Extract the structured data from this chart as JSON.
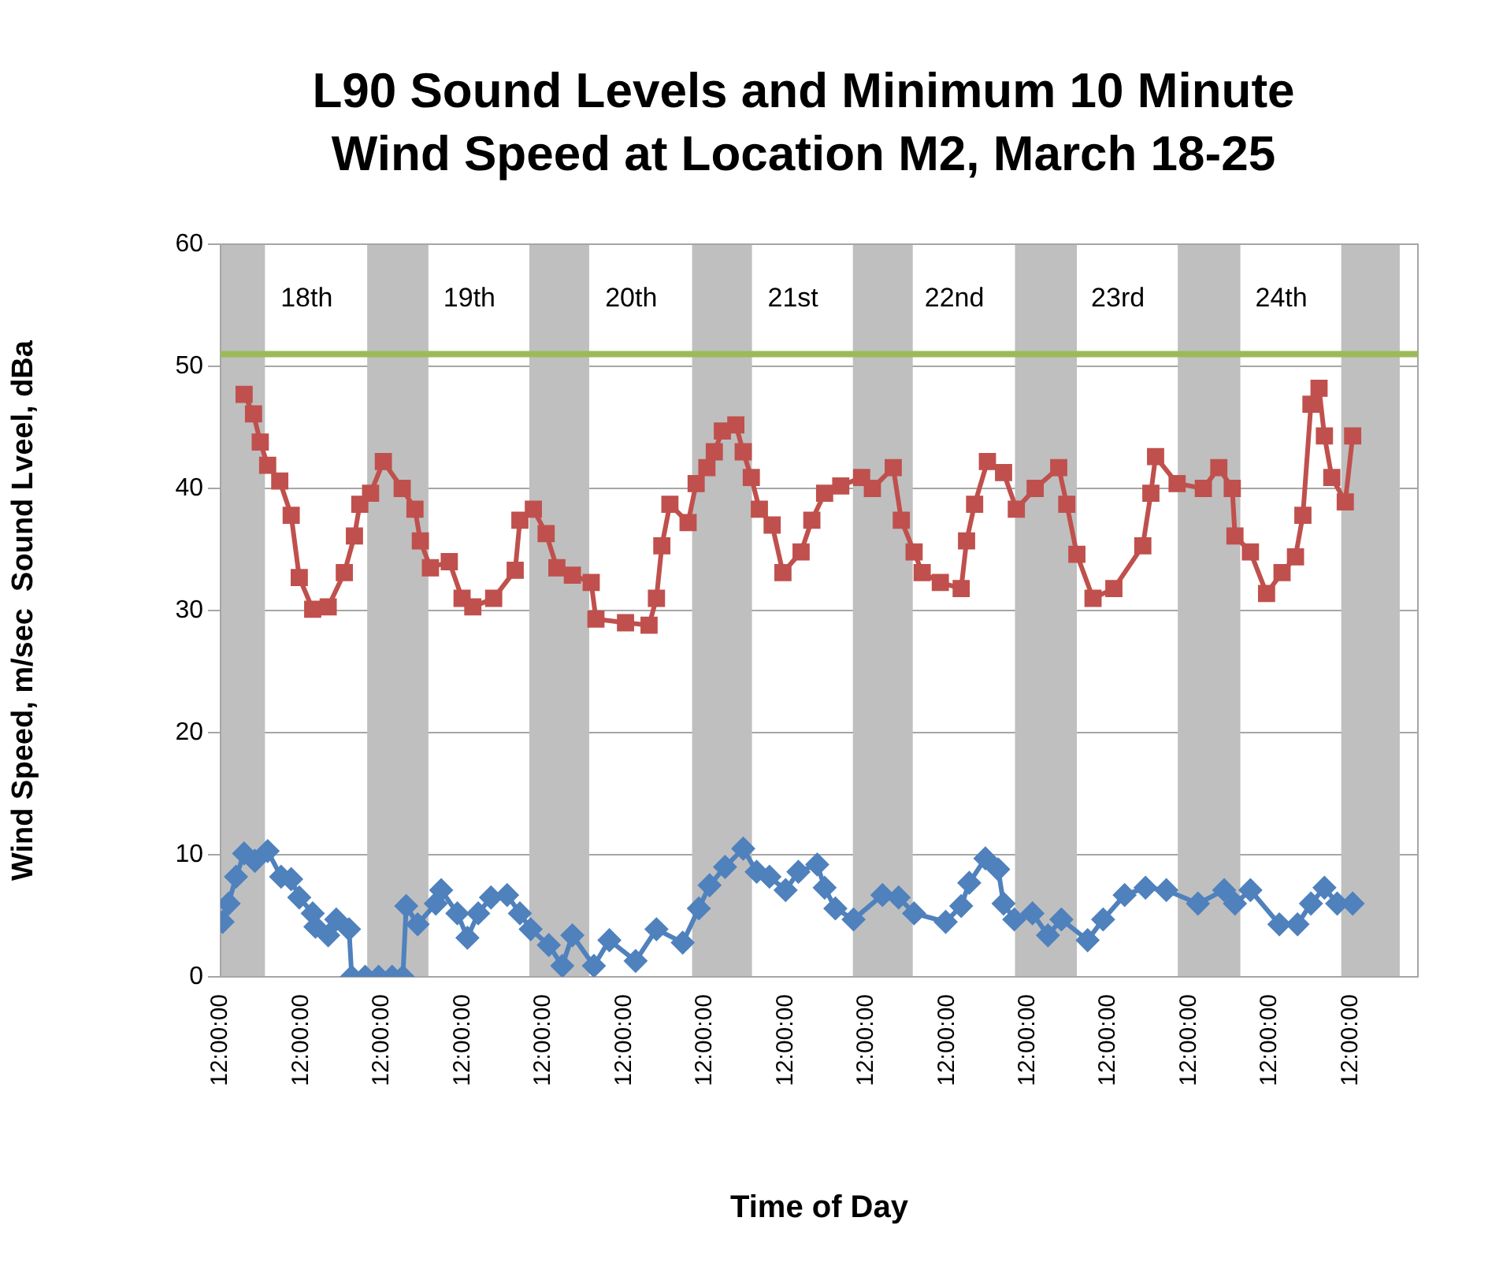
{
  "chart_data": {
    "type": "line",
    "title": "L90 Sound Levels and Minimum  10 Minute Wind Speed at Location M2, March 18-25",
    "xlabel": "Time of Day",
    "ylabel": "Wind Speed, m/sec  Sound Lveel, dBa",
    "xlim": [
      "--03-18T00:00",
      "--03-25T10:00"
    ],
    "xticks": [
      {
        "value": "--03-18T00:00",
        "label": "12:00:00"
      },
      {
        "value": "--03-18T12:00",
        "label": "12:00:00"
      },
      {
        "value": "--03-19T00:00",
        "label": "12:00:00"
      },
      {
        "value": "--03-19T12:00",
        "label": "12:00:00"
      },
      {
        "value": "--03-20T00:00",
        "label": "12:00:00"
      },
      {
        "value": "--03-20T12:00",
        "label": "12:00:00"
      },
      {
        "value": "--03-21T00:00",
        "label": "12:00:00"
      },
      {
        "value": "--03-21T12:00",
        "label": "12:00:00"
      },
      {
        "value": "--03-22T00:00",
        "label": "12:00:00"
      },
      {
        "value": "--03-22T12:00",
        "label": "12:00:00"
      },
      {
        "value": "--03-23T00:00",
        "label": "12:00:00"
      },
      {
        "value": "--03-23T12:00",
        "label": "12:00:00"
      },
      {
        "value": "--03-24T00:00",
        "label": "12:00:00"
      },
      {
        "value": "--03-24T12:00",
        "label": "12:00:00"
      },
      {
        "value": "--03-25T00:00",
        "label": "12:00:00"
      }
    ],
    "ylim": [
      0,
      60
    ],
    "yticks": [
      0,
      10,
      20,
      30,
      40,
      50,
      60
    ],
    "grid": "y",
    "series": [
      {
        "color": "#c0504d",
        "marker": "square",
        "x": [
          "--03-18T03:30",
          "--03-18T04:54",
          "--03-18T05:54",
          "--03-18T07:00",
          "--03-18T08:48",
          "--03-18T10:30",
          "--03-18T11:42",
          "--03-18T13:42",
          "--03-18T16:00",
          "--03-18T18:24",
          "--03-18T19:54",
          "--03-18T20:42",
          "--03-18T22:18",
          "--03-19T00:12",
          "--03-19T03:00",
          "--03-19T04:54",
          "--03-19T05:42",
          "--03-19T07:12",
          "--03-19T10:00",
          "--03-19T11:54",
          "--03-19T13:30",
          "--03-19T16:36",
          "--03-19T19:48",
          "--03-19T20:30",
          "--03-19T22:30",
          "--03-20T00:24",
          "--03-20T02:00",
          "--03-20T04:18",
          "--03-20T07:06",
          "--03-20T07:48",
          "--03-20T12:12",
          "--03-20T15:42",
          "--03-20T16:48",
          "--03-20T17:36",
          "--03-20T18:48",
          "--03-20T21:30",
          "--03-20T22:42",
          "--03-21T00:18",
          "--03-21T01:24",
          "--03-21T02:36",
          "--03-21T04:36",
          "--03-21T05:42",
          "--03-21T06:54",
          "--03-21T08:06",
          "--03-21T10:00",
          "--03-21T11:36",
          "--03-21T14:18",
          "--03-21T15:54",
          "--03-21T17:48",
          "--03-21T20:12",
          "--03-21T23:18",
          "--03-22T00:54",
          "--03-22T04:00",
          "--03-22T05:12",
          "--03-22T07:06",
          "--03-22T08:18",
          "--03-22T11:00",
          "--03-22T14:06",
          "--03-22T14:54",
          "--03-22T16:06",
          "--03-22T18:00",
          "--03-22T20:24",
          "--03-22T22:18",
          "--03-23T01:06",
          "--03-23T04:36",
          "--03-23T05:48",
          "--03-23T07:18",
          "--03-23T09:42",
          "--03-23T12:48",
          "--03-23T17:06",
          "--03-23T18:18",
          "--03-23T19:00",
          "--03-23T22:12",
          "--03-24T02:06",
          "--03-24T04:24",
          "--03-24T06:24",
          "--03-24T06:48",
          "--03-24T09:06",
          "--03-24T11:30",
          "--03-24T13:48",
          "--03-24T15:48",
          "--03-24T16:54",
          "--03-24T18:06",
          "--03-24T19:18",
          "--03-24T20:06",
          "--03-24T21:12",
          "--03-24T23:12",
          "--03-25T00:18"
        ],
        "values": [
          47.7,
          46.1,
          43.8,
          41.9,
          40.6,
          37.8,
          32.7,
          30.1,
          30.3,
          33.1,
          36.1,
          38.7,
          39.6,
          42.2,
          40.0,
          38.3,
          35.7,
          33.5,
          34.0,
          31.0,
          30.3,
          31.0,
          33.3,
          37.4,
          38.3,
          36.3,
          33.5,
          32.9,
          32.3,
          29.3,
          29.0,
          28.8,
          31.0,
          35.3,
          38.7,
          37.2,
          40.4,
          41.7,
          43.0,
          44.7,
          45.2,
          43.0,
          40.9,
          38.3,
          37.0,
          33.1,
          34.8,
          37.4,
          39.6,
          40.2,
          40.9,
          40.0,
          41.7,
          37.4,
          34.8,
          33.1,
          32.3,
          31.8,
          35.7,
          38.7,
          42.2,
          41.3,
          38.3,
          40.0,
          41.7,
          38.7,
          34.6,
          31.0,
          31.8,
          35.3,
          39.6,
          42.6,
          40.4,
          40.0,
          41.7,
          40.0,
          36.1,
          34.8,
          31.4,
          33.1,
          34.4,
          37.8,
          46.9,
          48.2,
          44.3,
          40.9,
          38.9,
          44.3
        ]
      },
      {
        "color": "#4f81bd",
        "marker": "diamond",
        "x": [
          "--03-18T00:18",
          "--03-18T01:12",
          "--03-18T02:18",
          "--03-18T03:30",
          "--03-18T05:06",
          "--03-18T07:00",
          "--03-18T09:00",
          "--03-18T10:30",
          "--03-18T11:42",
          "--03-18T13:42",
          "--03-18T14:06",
          "--03-18T16:00",
          "--03-18T17:12",
          "--03-18T19:06",
          "--03-18T19:30",
          "--03-18T21:30",
          "--03-18T23:30",
          "--03-19T01:30",
          "--03-19T03:06",
          "--03-19T03:36",
          "--03-19T05:18",
          "--03-19T08:00",
          "--03-19T08:48",
          "--03-19T11:12",
          "--03-19T12:42",
          "--03-19T14:18",
          "--03-19T16:12",
          "--03-19T18:36",
          "--03-19T20:30",
          "--03-19T22:06",
          "--03-20T00:48",
          "--03-20T02:48",
          "--03-20T04:18",
          "--03-20T07:30",
          "--03-20T09:48",
          "--03-20T13:42",
          "--03-20T16:48",
          "--03-20T20:42",
          "--03-20T23:06",
          "--03-21T00:42",
          "--03-21T03:00",
          "--03-21T05:42",
          "--03-21T07:42",
          "--03-21T09:36",
          "--03-21T12:00",
          "--03-21T13:54",
          "--03-21T16:42",
          "--03-21T17:48",
          "--03-21T19:24",
          "--03-21T22:06",
          "--03-22T02:24",
          "--03-22T04:48",
          "--03-22T07:06",
          "--03-22T11:48",
          "--03-22T14:06",
          "--03-22T15:18",
          "--03-22T17:42",
          "--03-22T19:36",
          "--03-22T20:24",
          "--03-22T22:00",
          "--03-23T00:42",
          "--03-23T03:00",
          "--03-23T05:00",
          "--03-23T08:54",
          "--03-23T11:12",
          "--03-23T14:24",
          "--03-23T17:30",
          "--03-23T20:36",
          "--03-24T01:18",
          "--03-24T05:12",
          "--03-24T06:48",
          "--03-24T09:06",
          "--03-24T13:24",
          "--03-24T16:06",
          "--03-24T18:06",
          "--03-24T20:06",
          "--03-24T22:00",
          "--03-25T00:18"
        ],
        "values": [
          4.5,
          6.0,
          8.2,
          10.1,
          9.5,
          10.3,
          8.2,
          8.0,
          6.5,
          5.2,
          4.1,
          3.4,
          4.7,
          3.9,
          0,
          0,
          0,
          0,
          0,
          5.8,
          4.3,
          6.0,
          7.1,
          5.2,
          3.2,
          5.2,
          6.5,
          6.7,
          5.2,
          3.9,
          2.6,
          0.9,
          3.4,
          0.9,
          3.0,
          1.3,
          3.9,
          2.8,
          5.6,
          7.5,
          9.0,
          10.5,
          8.6,
          8.2,
          7.1,
          8.6,
          9.2,
          7.3,
          5.6,
          4.7,
          6.7,
          6.5,
          5.2,
          4.5,
          5.8,
          7.7,
          9.7,
          8.8,
          6.0,
          4.7,
          5.2,
          3.4,
          4.7,
          3.0,
          4.7,
          6.7,
          7.3,
          7.1,
          6.0,
          7.1,
          6.0,
          7.1,
          4.3,
          4.3,
          6.0,
          7.3,
          6.0,
          6.0
        ]
      }
    ],
    "ref_lines": [
      {
        "axis": "y",
        "value": 51,
        "color": "#9bbb59"
      }
    ],
    "bands": [
      {
        "axis": "x",
        "from": "--03-18T00:00",
        "to": "--03-18T06:36",
        "color": "#bfbfbf"
      },
      {
        "axis": "x",
        "from": "--03-18T21:48",
        "to": "--03-19T06:54",
        "color": "#bfbfbf"
      },
      {
        "axis": "x",
        "from": "--03-19T21:54",
        "to": "--03-20T06:48",
        "color": "#bfbfbf"
      },
      {
        "axis": "x",
        "from": "--03-20T22:06",
        "to": "--03-21T07:00",
        "color": "#bfbfbf"
      },
      {
        "axis": "x",
        "from": "--03-21T22:00",
        "to": "--03-22T06:54",
        "color": "#bfbfbf"
      },
      {
        "axis": "x",
        "from": "--03-22T22:06",
        "to": "--03-23T07:18",
        "color": "#bfbfbf"
      },
      {
        "axis": "x",
        "from": "--03-23T22:18",
        "to": "--03-24T07:36",
        "color": "#bfbfbf"
      },
      {
        "axis": "x",
        "from": "--03-24T22:36",
        "to": "--03-25T07:18",
        "color": "#bfbfbf"
      }
    ],
    "annotations": [
      "18th",
      "19th",
      "20th",
      "21st",
      "22nd",
      "23rd",
      "24th"
    ]
  }
}
